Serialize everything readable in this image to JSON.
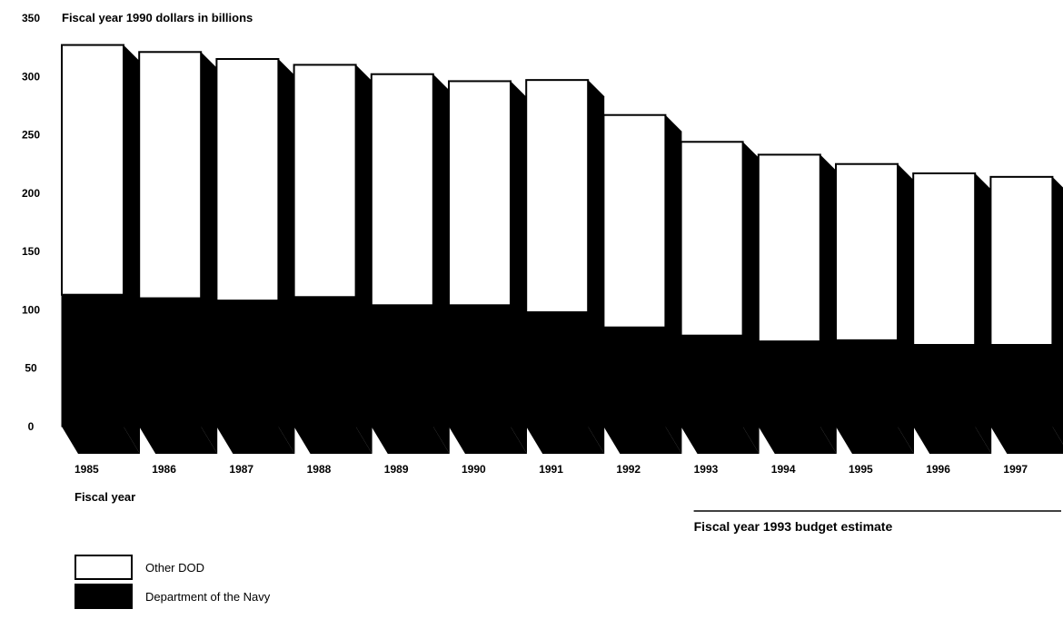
{
  "chart_data": {
    "type": "bar",
    "stacked": true,
    "title": "Fiscal year 1990 dollars in billions",
    "xlabel": "Fiscal year",
    "ylim": [
      0,
      350
    ],
    "yticks": [
      "0",
      "50",
      "100",
      "150",
      "200",
      "250",
      "300",
      "350"
    ],
    "categories": [
      "1985",
      "1986",
      "1987",
      "1988",
      "1989",
      "1990",
      "1991",
      "1992",
      "1993",
      "1994",
      "1995",
      "1996",
      "1997"
    ],
    "series": [
      {
        "name": "Department of the Navy",
        "color": "#000000",
        "values": [
          113,
          110,
          108,
          111,
          104,
          104,
          98,
          85,
          78,
          73,
          74,
          70,
          70
        ]
      },
      {
        "name": "Other DOD",
        "color": "#ffffff",
        "values": [
          214,
          211,
          207,
          199,
          198,
          192,
          199,
          182,
          166,
          160,
          151,
          147,
          144
        ]
      }
    ],
    "annotation": "Fiscal year 1993 budget estimate",
    "annotation_span": [
      "1993",
      "1997"
    ],
    "grid": false,
    "legend_position": "bottom-left"
  }
}
